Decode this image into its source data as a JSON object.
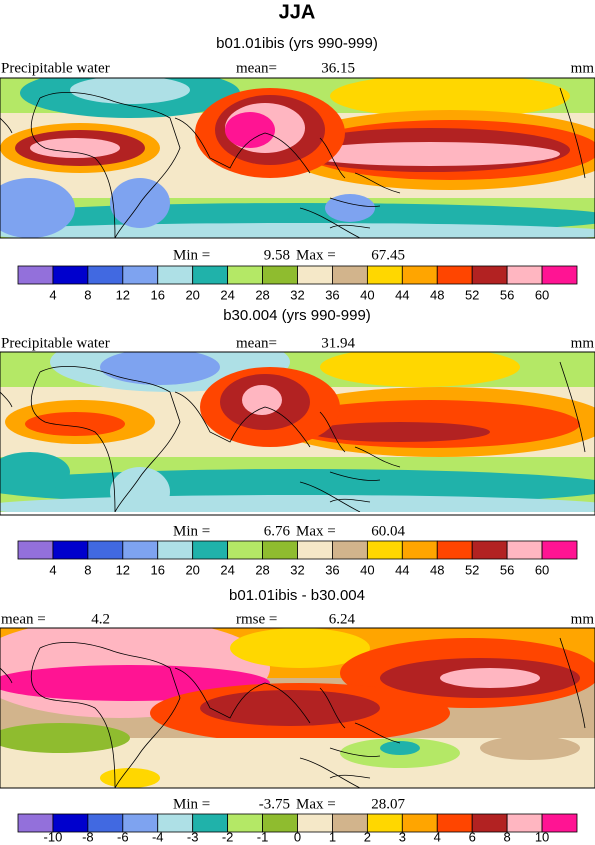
{
  "title": "JJA",
  "panels": [
    {
      "subtitle": "b01.01ibis (yrs 990-999)",
      "left_label": "Precipitable water",
      "center_label": "mean=",
      "center_value": 36.15,
      "units": "mm",
      "min_label": "Min =",
      "min": 9.58,
      "max_label": "Max =",
      "max": 67.45,
      "colors": [
        "#9370db",
        "#0000cd",
        "#4169e1",
        "#7ea3f0",
        "#aee0e6",
        "#20b2aa",
        "#b4e866",
        "#8fbc2f",
        "#f5e8c8",
        "#d2b48c",
        "#ffd700",
        "#ffa500",
        "#ff4500",
        "#b22222",
        "#ffb6c1",
        "#ff1493"
      ],
      "levels": [
        4,
        8,
        12,
        16,
        20,
        24,
        28,
        32,
        36,
        40,
        44,
        48,
        52,
        56,
        60
      ]
    },
    {
      "subtitle": "b30.004 (yrs 990-999)",
      "left_label": "Precipitable water",
      "center_label": "mean=",
      "center_value": 31.94,
      "units": "mm",
      "min_label": "Min =",
      "min": 6.76,
      "max_label": "Max =",
      "max": 60.04,
      "colors": [
        "#9370db",
        "#0000cd",
        "#4169e1",
        "#7ea3f0",
        "#aee0e6",
        "#20b2aa",
        "#b4e866",
        "#8fbc2f",
        "#f5e8c8",
        "#d2b48c",
        "#ffd700",
        "#ffa500",
        "#ff4500",
        "#b22222",
        "#ffb6c1",
        "#ff1493"
      ],
      "levels": [
        4,
        8,
        12,
        16,
        20,
        24,
        28,
        32,
        36,
        40,
        44,
        48,
        52,
        56,
        60
      ]
    },
    {
      "subtitle": "b01.01ibis - b30.004",
      "left_label": "mean =",
      "left_value": 4.2,
      "center_label": "rmse =",
      "center_value": 6.24,
      "units": "mm",
      "min_label": "Min =",
      "min": -3.75,
      "max_label": "Max =",
      "max": 28.07,
      "colors": [
        "#9370db",
        "#0000cd",
        "#4169e1",
        "#7ea3f0",
        "#aee0e6",
        "#20b2aa",
        "#b4e866",
        "#8fbc2f",
        "#f5e8c8",
        "#d2b48c",
        "#ffd700",
        "#ffa500",
        "#ff4500",
        "#b22222",
        "#ffb6c1",
        "#ff1493"
      ],
      "levels": [
        -10,
        -8,
        -6,
        -4,
        -3,
        -2,
        -1,
        0,
        1,
        2,
        3,
        4,
        6,
        8,
        10
      ]
    }
  ]
}
